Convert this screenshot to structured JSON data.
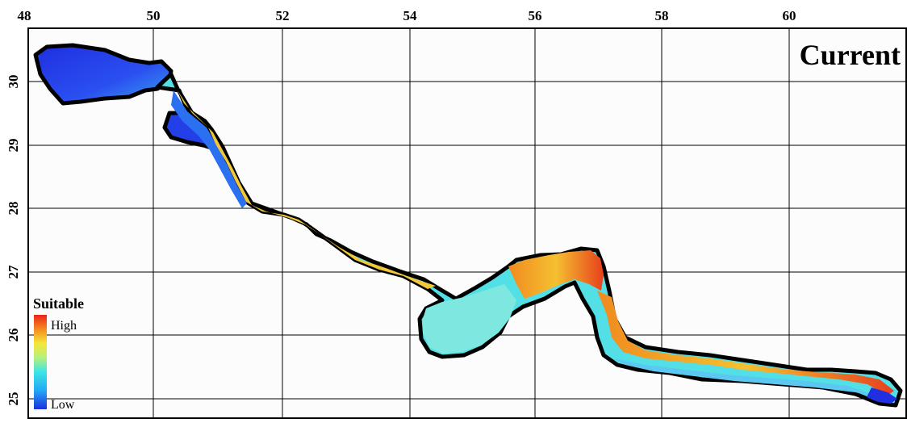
{
  "map": {
    "panel_label": "Current",
    "x_ticks": [
      "48",
      "50",
      "52",
      "54",
      "56",
      "58",
      "60"
    ],
    "y_ticks": [
      "30",
      "29",
      "28",
      "27",
      "26",
      "25"
    ]
  },
  "legend": {
    "title": "Suitable",
    "high_label": "High",
    "low_label": "Low",
    "gradient": [
      "#1f2fe0",
      "#22a8f5",
      "#3ee6e6",
      "#b8f07a",
      "#f5e63a",
      "#f58a1e",
      "#e8241c"
    ]
  },
  "colors": {
    "outline": "#000000",
    "grid": "#000000",
    "sea": "#fcfcfc",
    "low": "#1f2fe0",
    "mid": "#4fe3e8",
    "high": "#e8241c"
  }
}
